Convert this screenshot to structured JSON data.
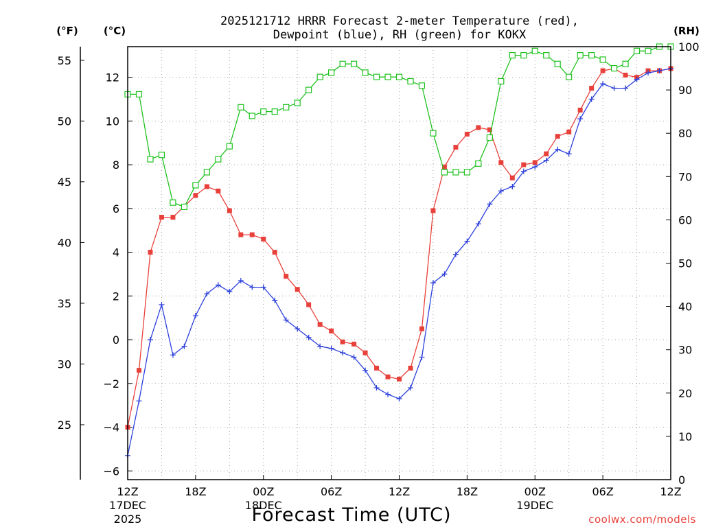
{
  "chart_data": {
    "type": "line",
    "title_line1": "2025121712 HRRR Forecast 2-meter Temperature (red),",
    "title_line2": "Dewpoint (blue), RH (green) for KOKX",
    "unit_f": "(°F)",
    "unit_c": "(°C)",
    "unit_rh": "(RH)",
    "xlabel": "Forecast Time (UTC)",
    "credit": "coolwx.com/models",
    "x_range": [
      0,
      48
    ],
    "c_range": [
      -6.4,
      13.4
    ],
    "rh_range": [
      0,
      100
    ],
    "f_ticks": [
      25,
      30,
      35,
      40,
      45,
      50,
      55
    ],
    "c_ticks": [
      -6,
      -4,
      -2,
      0,
      2,
      4,
      6,
      8,
      10,
      12
    ],
    "rh_ticks": [
      0,
      10,
      20,
      30,
      40,
      50,
      60,
      70,
      80,
      90,
      100
    ],
    "x_ticks": [
      {
        "hour": 0,
        "label": "12Z",
        "date": "17DEC",
        "year": "2025"
      },
      {
        "hour": 6,
        "label": "18Z"
      },
      {
        "hour": 12,
        "label": "00Z",
        "date": "18DEC"
      },
      {
        "hour": 18,
        "label": "06Z"
      },
      {
        "hour": 24,
        "label": "12Z"
      },
      {
        "hour": 30,
        "label": "18Z"
      },
      {
        "hour": 36,
        "label": "00Z",
        "date": "19DEC"
      },
      {
        "hour": 42,
        "label": "06Z"
      },
      {
        "hour": 48,
        "label": "12Z"
      }
    ],
    "series": [
      {
        "name": "Temperature",
        "axis": "C",
        "color": "#e8403a",
        "marker": "filled-square",
        "values": [
          -4.0,
          -1.4,
          4.0,
          5.6,
          5.6,
          6.1,
          6.6,
          7.0,
          6.8,
          5.9,
          4.8,
          4.8,
          4.6,
          4.0,
          2.9,
          2.3,
          1.6,
          0.7,
          0.4,
          -0.1,
          -0.2,
          -0.6,
          -1.3,
          -1.7,
          -1.8,
          -1.3,
          0.5,
          5.9,
          7.9,
          8.8,
          9.4,
          9.7,
          9.6,
          8.1,
          7.4,
          8.0,
          8.1,
          8.5,
          9.3,
          9.5,
          10.5,
          11.5,
          12.3,
          12.4,
          12.1,
          12.0,
          12.3,
          12.3,
          12.4
        ]
      },
      {
        "name": "Dewpoint",
        "axis": "C",
        "color": "#2b3fdc",
        "marker": "plus",
        "values": [
          -5.3,
          -2.8,
          0.0,
          1.6,
          -0.7,
          -0.3,
          1.1,
          2.1,
          2.5,
          2.2,
          2.7,
          2.4,
          2.4,
          1.8,
          0.9,
          0.5,
          0.1,
          -0.3,
          -0.4,
          -0.6,
          -0.8,
          -1.4,
          -2.2,
          -2.5,
          -2.7,
          -2.2,
          -0.8,
          2.6,
          3.0,
          3.9,
          4.5,
          5.3,
          6.2,
          6.8,
          7.0,
          7.7,
          7.9,
          8.2,
          8.7,
          8.5,
          10.1,
          11.0,
          11.7,
          11.5,
          11.5,
          11.9,
          12.2,
          12.3,
          12.4
        ]
      },
      {
        "name": "RH",
        "axis": "RH",
        "color": "#1ec21e",
        "marker": "open-square",
        "values": [
          89,
          89,
          74,
          75,
          64,
          63,
          68,
          71,
          74,
          77,
          86,
          84,
          85,
          85,
          86,
          87,
          90,
          93,
          94,
          96,
          96,
          94,
          93,
          93,
          93,
          92,
          91,
          80,
          71,
          71,
          71,
          73,
          79,
          92,
          98,
          98,
          99,
          98,
          96,
          93,
          98,
          98,
          97,
          95,
          96,
          99,
          99,
          100,
          100
        ]
      }
    ]
  }
}
